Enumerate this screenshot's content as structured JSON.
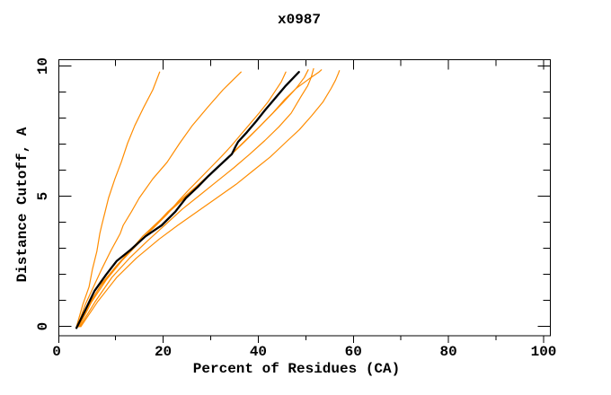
{
  "figure": {
    "background": "#ffffff",
    "frame_color": "#000000"
  },
  "chart_data": {
    "type": "line",
    "title": "x0987",
    "xlabel": "Percent of Residues (CA)",
    "ylabel": "Distance Cutoff, A",
    "xlim": [
      0,
      100
    ],
    "ylim": [
      0,
      10
    ],
    "x_tick_labels": [
      "0",
      "20",
      "40",
      "60",
      "80",
      "100"
    ],
    "x_major_ticks": [
      0,
      20,
      40,
      60,
      80,
      100
    ],
    "x_minor_ticks": [
      10,
      30,
      50,
      70,
      90
    ],
    "y_tick_labels": [
      "0",
      "5",
      "10"
    ],
    "y_major_ticks": [
      0,
      5,
      10
    ],
    "y_minor_ticks": [
      1,
      2,
      3,
      4,
      6,
      7,
      8,
      9
    ],
    "grid": false,
    "legend": "none",
    "colors": {
      "reference_curve": "#000000",
      "model_curves": "#ff8c00"
    },
    "series": [
      {
        "name": "orange-curve-1",
        "color": "#ff8c00",
        "width": 1.2,
        "points": [
          [
            3.7,
            0.3
          ],
          [
            5.0,
            1.1
          ],
          [
            6.3,
            1.75
          ],
          [
            7.0,
            2.4
          ],
          [
            7.9,
            3.05
          ],
          [
            8.5,
            3.7
          ],
          [
            8.9,
            4.0
          ],
          [
            9.6,
            4.5
          ],
          [
            10.3,
            5.0
          ],
          [
            11.6,
            5.7
          ],
          [
            12.9,
            6.3
          ],
          [
            14.2,
            7.0
          ],
          [
            15.7,
            7.65
          ],
          [
            17.5,
            8.3
          ],
          [
            19.4,
            8.95
          ],
          [
            20.8,
            9.6
          ]
        ]
      },
      {
        "name": "orange-curve-2",
        "color": "#ff8c00",
        "width": 1.2,
        "points": [
          [
            3.9,
            0.3
          ],
          [
            5.5,
            1.1
          ],
          [
            7.2,
            1.75
          ],
          [
            8.9,
            2.4
          ],
          [
            10.7,
            3.05
          ],
          [
            12.7,
            3.7
          ],
          [
            13.3,
            4.0
          ],
          [
            15.0,
            4.5
          ],
          [
            16.6,
            5.0
          ],
          [
            19.4,
            5.7
          ],
          [
            22.3,
            6.3
          ],
          [
            24.9,
            7.0
          ],
          [
            27.5,
            7.65
          ],
          [
            30.6,
            8.3
          ],
          [
            33.8,
            8.95
          ],
          [
            35.8,
            9.3
          ],
          [
            37.5,
            9.6
          ]
        ]
      },
      {
        "name": "orange-curve-3",
        "color": "#ff8c00",
        "width": 1.2,
        "points": [
          [
            3.9,
            0.3
          ],
          [
            6.2,
            1.1
          ],
          [
            8.7,
            1.8
          ],
          [
            11.5,
            2.4
          ],
          [
            13.8,
            2.9
          ],
          [
            16.5,
            3.4
          ],
          [
            19.5,
            3.9
          ],
          [
            22.3,
            4.4
          ],
          [
            24.7,
            4.9
          ],
          [
            26.8,
            5.3
          ],
          [
            29.0,
            5.7
          ],
          [
            31.2,
            6.1
          ],
          [
            33.4,
            6.5
          ],
          [
            35.5,
            6.9
          ],
          [
            37.4,
            7.3
          ],
          [
            39.3,
            7.7
          ],
          [
            41.2,
            8.1
          ],
          [
            43.0,
            8.5
          ],
          [
            44.5,
            8.9
          ],
          [
            45.8,
            9.25
          ],
          [
            46.7,
            9.6
          ]
        ]
      },
      {
        "name": "orange-curve-4",
        "color": "#ff8c00",
        "width": 1.2,
        "points": [
          [
            4.1,
            0.3
          ],
          [
            6.3,
            1.1
          ],
          [
            9.0,
            1.9
          ],
          [
            11.8,
            2.5
          ],
          [
            14.4,
            3.0
          ],
          [
            17.3,
            3.6
          ],
          [
            20.3,
            4.1
          ],
          [
            23.4,
            4.6
          ],
          [
            26.5,
            5.1
          ],
          [
            29.6,
            5.6
          ],
          [
            32.6,
            6.1
          ],
          [
            35.6,
            6.6
          ],
          [
            38.5,
            7.1
          ],
          [
            41.3,
            7.6
          ],
          [
            44.0,
            8.1
          ],
          [
            46.5,
            8.6
          ],
          [
            48.8,
            9.0
          ],
          [
            50.5,
            9.4
          ],
          [
            51.3,
            9.68
          ]
        ]
      },
      {
        "name": "orange-curve-5",
        "color": "#ff8c00",
        "width": 1.2,
        "points": [
          [
            4.2,
            0.3
          ],
          [
            6.8,
            1.2
          ],
          [
            9.8,
            2.0
          ],
          [
            13.0,
            2.7
          ],
          [
            16.2,
            3.3
          ],
          [
            19.3,
            3.9
          ],
          [
            22.5,
            4.5
          ],
          [
            25.6,
            5.0
          ],
          [
            28.8,
            5.5
          ],
          [
            31.9,
            6.0
          ],
          [
            34.9,
            6.5
          ],
          [
            37.8,
            7.0
          ],
          [
            40.7,
            7.5
          ],
          [
            43.5,
            8.0
          ],
          [
            46.2,
            8.5
          ],
          [
            48.8,
            9.0
          ],
          [
            51.5,
            9.35
          ],
          [
            53.5,
            9.6
          ],
          [
            54.0,
            9.68
          ]
        ]
      },
      {
        "name": "orange-curve-6",
        "color": "#ff8c00",
        "width": 1.2,
        "points": [
          [
            4.4,
            0.3
          ],
          [
            7.5,
            1.2
          ],
          [
            11.0,
            2.1
          ],
          [
            14.6,
            2.8
          ],
          [
            18.1,
            3.4
          ],
          [
            21.8,
            4.0
          ],
          [
            25.5,
            4.6
          ],
          [
            29.0,
            5.1
          ],
          [
            32.5,
            5.6
          ],
          [
            36.0,
            6.1
          ],
          [
            39.3,
            6.6
          ],
          [
            42.4,
            7.1
          ],
          [
            45.3,
            7.6
          ],
          [
            47.8,
            8.1
          ],
          [
            49.8,
            8.7
          ],
          [
            51.2,
            9.1
          ],
          [
            51.9,
            9.4
          ],
          [
            52.4,
            9.72
          ]
        ]
      },
      {
        "name": "orange-curve-7",
        "color": "#ff8c00",
        "width": 1.2,
        "points": [
          [
            4.6,
            0.3
          ],
          [
            8.0,
            1.2
          ],
          [
            12.0,
            2.1
          ],
          [
            16.0,
            2.8
          ],
          [
            20.7,
            3.5
          ],
          [
            24.5,
            4.0
          ],
          [
            28.5,
            4.5
          ],
          [
            32.5,
            5.0
          ],
          [
            36.5,
            5.5
          ],
          [
            40.0,
            6.0
          ],
          [
            43.5,
            6.5
          ],
          [
            46.5,
            7.0
          ],
          [
            49.5,
            7.5
          ],
          [
            52.0,
            8.0
          ],
          [
            54.3,
            8.5
          ],
          [
            56.0,
            9.0
          ],
          [
            56.9,
            9.3
          ],
          [
            57.5,
            9.55
          ],
          [
            57.7,
            9.65
          ]
        ]
      },
      {
        "name": "black-curve",
        "color": "#000000",
        "width": 2.3,
        "points": [
          [
            3.7,
            0.25
          ],
          [
            5.5,
            0.9
          ],
          [
            7.4,
            1.6
          ],
          [
            9.8,
            2.2
          ],
          [
            12.0,
            2.7
          ],
          [
            14.8,
            3.1
          ],
          [
            17.9,
            3.6
          ],
          [
            21.2,
            4.0
          ],
          [
            24.0,
            4.5
          ],
          [
            26.2,
            5.0
          ],
          [
            28.6,
            5.4
          ],
          [
            30.8,
            5.8
          ],
          [
            33.2,
            6.2
          ],
          [
            35.6,
            6.6
          ],
          [
            36.3,
            6.85
          ],
          [
            36.9,
            7.05
          ],
          [
            38.7,
            7.4
          ],
          [
            40.6,
            7.8
          ],
          [
            42.4,
            8.2
          ],
          [
            44.3,
            8.6
          ],
          [
            46.7,
            9.1
          ],
          [
            49.4,
            9.6
          ]
        ]
      }
    ]
  }
}
